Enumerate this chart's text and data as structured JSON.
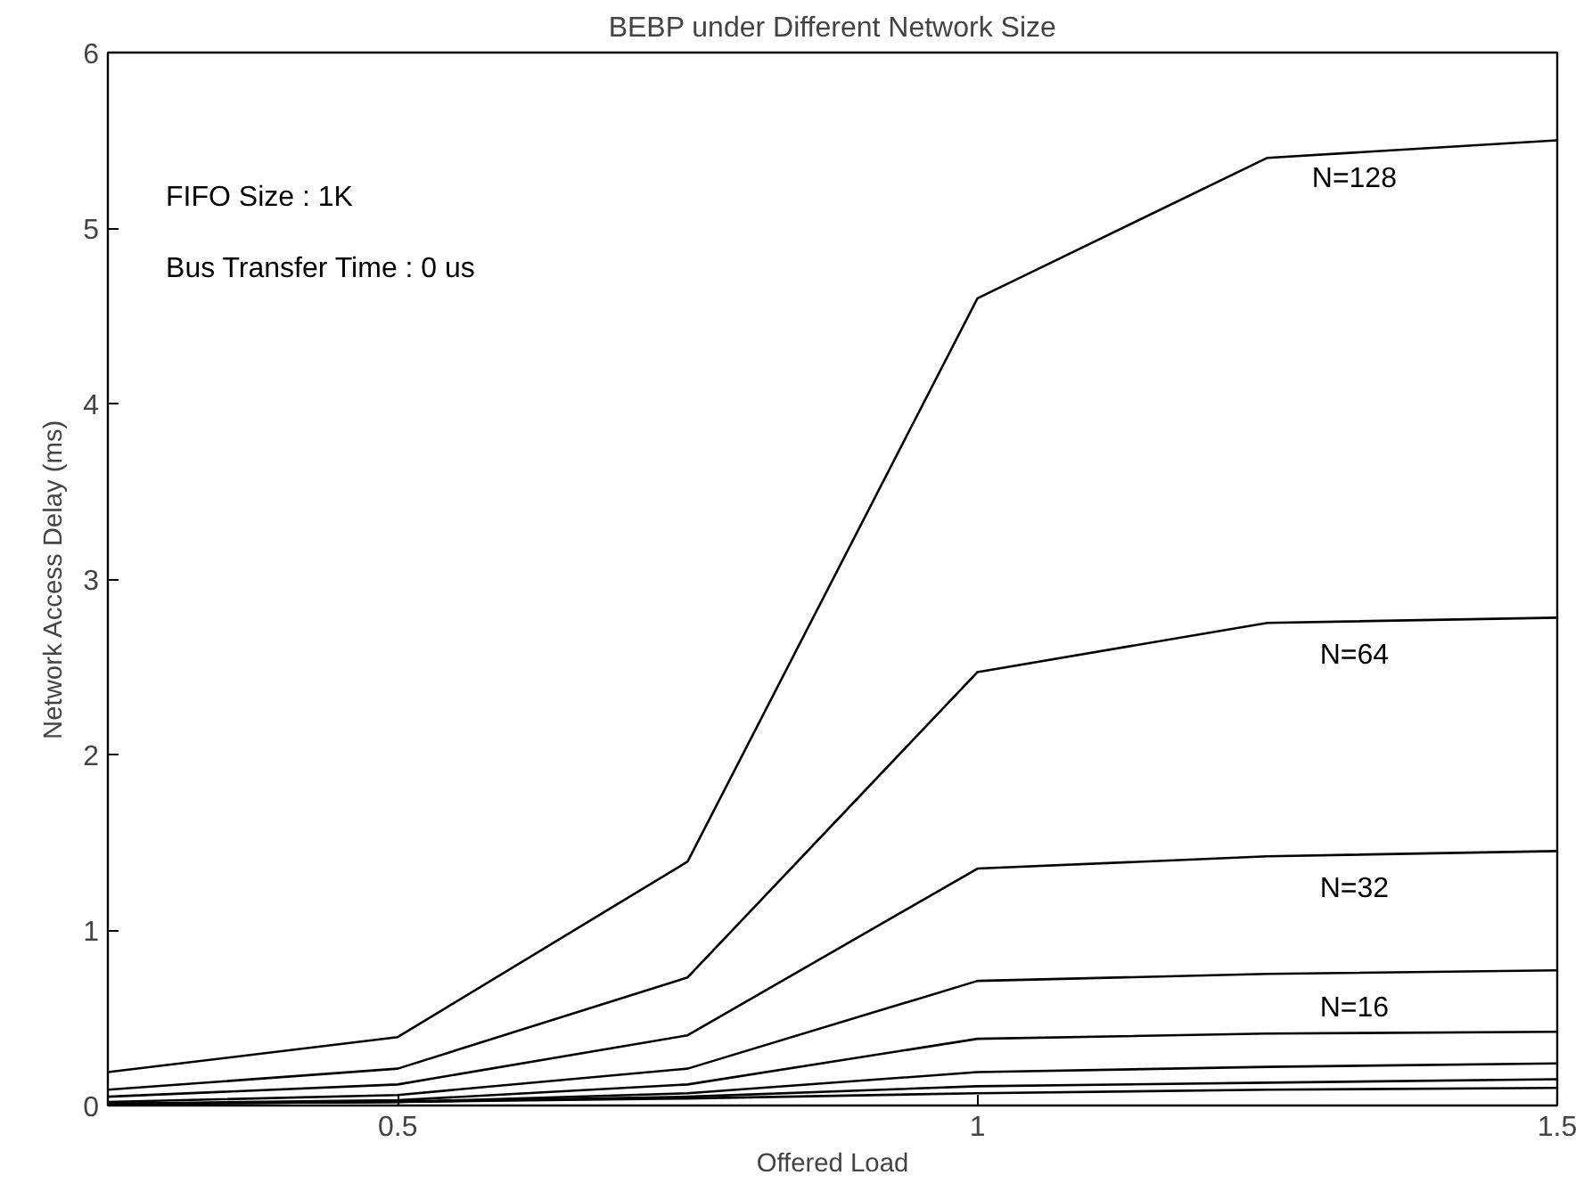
{
  "chart_data": {
    "type": "line",
    "title": "BEBP under Different Network Size",
    "xlabel": "Offered Load",
    "ylabel": "Network Access Delay (ms)",
    "annotations": [
      "FIFO Size : 1K",
      "Bus Transfer Time : 0 us"
    ],
    "x": [
      0.25,
      0.5,
      0.75,
      1.0,
      1.25,
      1.5
    ],
    "series": [
      {
        "name": "N=128",
        "color": "#000000",
        "values": [
          0.19,
          0.39,
          1.39,
          4.6,
          5.4,
          5.5
        ]
      },
      {
        "name": "N=64",
        "color": "#000000",
        "values": [
          0.09,
          0.21,
          0.73,
          2.47,
          2.75,
          2.78
        ]
      },
      {
        "name": "N=32",
        "color": "#000000",
        "values": [
          0.05,
          0.12,
          0.4,
          1.35,
          1.42,
          1.45
        ]
      },
      {
        "name": "N=16",
        "color": "#000000",
        "values": [
          0.02,
          0.06,
          0.21,
          0.71,
          0.75,
          0.77
        ]
      },
      {
        "color": "#000000",
        "values": [
          0.01,
          0.03,
          0.12,
          0.38,
          0.41,
          0.42
        ]
      },
      {
        "color": "#000000",
        "values": [
          0.01,
          0.02,
          0.07,
          0.19,
          0.22,
          0.24
        ]
      },
      {
        "color": "#000000",
        "values": [
          0.01,
          0.02,
          0.05,
          0.11,
          0.13,
          0.15
        ]
      },
      {
        "color": "#000000",
        "values": [
          0.01,
          0.02,
          0.04,
          0.07,
          0.09,
          0.1
        ]
      }
    ],
    "xlim": [
      0.25,
      1.5
    ],
    "ylim": [
      0,
      6
    ],
    "xticks": [
      0.5,
      1,
      1.5
    ],
    "yticks": [
      0,
      1,
      2,
      3,
      4,
      5,
      6
    ],
    "grid": false,
    "legend": false,
    "marker": "none",
    "line_style": "solid"
  }
}
